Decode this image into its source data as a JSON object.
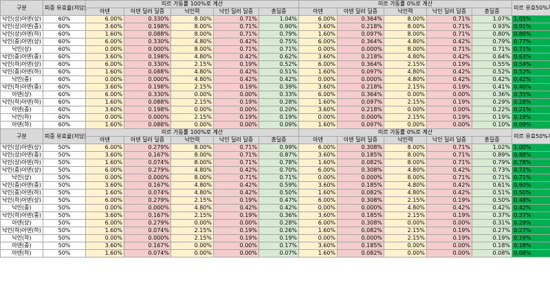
{
  "headers": {
    "gubun": "구분",
    "rate": "피증 유효율(저담)",
    "group100": "미르 가동률 100%로 계산",
    "group0": "미르 가동률 0%로 계산",
    "final": "미르 유효50%계산",
    "sub": [
      "아덴",
      "아덴 딜러 딜증",
      "낙인력",
      "낙인 딜러 딜증",
      "총딜증"
    ]
  },
  "sections": [
    {
      "rows": [
        {
          "name": "낙인(상)아덴(상)",
          "pct": "60%",
          "a": [
            "6.00%",
            "0.330%",
            "8.00%",
            "0.71%",
            "1.04%"
          ],
          "b": [
            "6.00%",
            "0.364%",
            "8.00%",
            "0.71%",
            "1.07%"
          ],
          "f": "1.05%"
        },
        {
          "name": "낙인(상)아덴(중)",
          "pct": "60%",
          "a": [
            "3.60%",
            "0.198%",
            "8.00%",
            "0.71%",
            "0.90%"
          ],
          "b": [
            "3.60%",
            "0.218%",
            "8.00%",
            "0.71%",
            "0.93%"
          ],
          "f": "0.91%"
        },
        {
          "name": "낙인(상)아덴(하)",
          "pct": "60%",
          "a": [
            "1.60%",
            "0.088%",
            "8.00%",
            "0.71%",
            "0.79%"
          ],
          "b": [
            "1.60%",
            "0.097%",
            "8.00%",
            "0.71%",
            "0.80%"
          ],
          "f": "0.80%"
        },
        {
          "name": "낙인(중)아덴(상)",
          "pct": "60%",
          "a": [
            "6.00%",
            "0.330%",
            "4.80%",
            "0.42%",
            "0.75%"
          ],
          "b": [
            "6.00%",
            "0.364%",
            "4.80%",
            "0.42%",
            "0.79%"
          ],
          "f": "0.77%"
        },
        {
          "name": "낙인(상)",
          "pct": "60%",
          "a": [
            "0.00%",
            "0.000%",
            "8.00%",
            "0.71%",
            "0.71%"
          ],
          "b": [
            "0.00%",
            "0.000%",
            "8.00%",
            "0.71%",
            "0.71%"
          ],
          "f": "0.71%"
        },
        {
          "name": "낙인(중)아덴(중)",
          "pct": "60%",
          "a": [
            "3.60%",
            "0.198%",
            "4.80%",
            "0.42%",
            "0.62%"
          ],
          "b": [
            "3.60%",
            "0.218%",
            "4.80%",
            "0.42%",
            "0.64%"
          ],
          "f": "0.63%"
        },
        {
          "name": "낙인(하)아덴(상)",
          "pct": "60%",
          "a": [
            "6.00%",
            "0.330%",
            "2.15%",
            "0.19%",
            "0.52%"
          ],
          "b": [
            "6.00%",
            "0.364%",
            "2.15%",
            "0.19%",
            "0.55%"
          ],
          "f": "0.54%"
        },
        {
          "name": "낙인(중)아덴(하)",
          "pct": "60%",
          "a": [
            "1.60%",
            "0.088%",
            "4.80%",
            "0.42%",
            "0.51%"
          ],
          "b": [
            "1.60%",
            "0.097%",
            "4.80%",
            "0.42%",
            "0.52%"
          ],
          "f": "0.52%"
        },
        {
          "name": "낙인(중)",
          "pct": "60%",
          "a": [
            "0.00%",
            "0.000%",
            "4.80%",
            "0.42%",
            "0.42%"
          ],
          "b": [
            "0.00%",
            "0.000%",
            "4.80%",
            "0.42%",
            "0.42%"
          ],
          "f": "0.42%"
        },
        {
          "name": "낙인(하)아덴(중)",
          "pct": "60%",
          "a": [
            "3.60%",
            "0.198%",
            "2.15%",
            "0.19%",
            "0.39%"
          ],
          "b": [
            "3.60%",
            "0.218%",
            "2.15%",
            "0.19%",
            "0.41%"
          ],
          "f": "0.40%"
        },
        {
          "name": "아덴(상)",
          "pct": "60%",
          "a": [
            "6.00%",
            "0.330%",
            "0.00%",
            "0.00%",
            "0.33%"
          ],
          "b": [
            "6.00%",
            "0.364%",
            "0.00%",
            "0.00%",
            "0.36%"
          ],
          "f": "0.35%"
        },
        {
          "name": "낙인(하)아덴(하)",
          "pct": "60%",
          "a": [
            "1.60%",
            "0.088%",
            "2.15%",
            "0.19%",
            "0.28%"
          ],
          "b": [
            "1.60%",
            "0.097%",
            "2.15%",
            "0.19%",
            "0.29%"
          ],
          "f": "0.28%"
        },
        {
          "name": "아덴(중)",
          "pct": "60%",
          "a": [
            "3.60%",
            "0.198%",
            "0.00%",
            "0.00%",
            "0.20%"
          ],
          "b": [
            "3.60%",
            "0.218%",
            "0.00%",
            "0.00%",
            "0.22%"
          ],
          "f": "0.21%"
        },
        {
          "name": "낙인(하)",
          "pct": "60%",
          "a": [
            "0.00%",
            "0.000%",
            "2.15%",
            "0.19%",
            "0.19%"
          ],
          "b": [
            "0.00%",
            "0.000%",
            "2.15%",
            "0.19%",
            "0.19%"
          ],
          "f": "0.19%"
        },
        {
          "name": "아덴(하)",
          "pct": "60%",
          "a": [
            "1.60%",
            "0.088%",
            "0.00%",
            "0.00%",
            "0.09%"
          ],
          "b": [
            "1.60%",
            "0.097%",
            "0.00%",
            "0.00%",
            "0.10%"
          ],
          "f": "0.09%"
        }
      ]
    },
    {
      "rows": [
        {
          "name": "낙인(상)아덴(상)",
          "pct": "50%",
          "a": [
            "6.00%",
            "0.279%",
            "8.00%",
            "0.71%",
            "0.99%"
          ],
          "b": [
            "6.00%",
            "0.308%",
            "8.00%",
            "0.71%",
            "1.02%"
          ],
          "f": "1.00%"
        },
        {
          "name": "낙인(상)아덴(중)",
          "pct": "50%",
          "a": [
            "3.60%",
            "0.167%",
            "8.00%",
            "0.71%",
            "0.87%"
          ],
          "b": [
            "3.60%",
            "0.185%",
            "8.00%",
            "0.71%",
            "0.89%"
          ],
          "f": "0.88%"
        },
        {
          "name": "낙인(상)아덴(하)",
          "pct": "50%",
          "a": [
            "1.60%",
            "0.074%",
            "8.00%",
            "0.71%",
            "0.78%"
          ],
          "b": [
            "1.60%",
            "0.082%",
            "8.00%",
            "0.71%",
            "0.79%"
          ],
          "f": "0.78%"
        },
        {
          "name": "낙인(중)아덴(상)",
          "pct": "50%",
          "a": [
            "6.00%",
            "0.279%",
            "4.80%",
            "0.42%",
            "0.70%"
          ],
          "b": [
            "6.00%",
            "0.308%",
            "4.80%",
            "0.42%",
            "0.73%"
          ],
          "f": "0.72%"
        },
        {
          "name": "낙인(상)",
          "pct": "50%",
          "a": [
            "0.00%",
            "0.000%",
            "8.00%",
            "0.71%",
            "0.71%"
          ],
          "b": [
            "0.00%",
            "0.000%",
            "8.00%",
            "0.71%",
            "0.71%"
          ],
          "f": "0.71%"
        },
        {
          "name": "낙인(중)아덴(중)",
          "pct": "50%",
          "a": [
            "3.60%",
            "0.167%",
            "4.80%",
            "0.42%",
            "0.59%"
          ],
          "b": [
            "3.60%",
            "0.185%",
            "4.80%",
            "0.42%",
            "0.61%"
          ],
          "f": "0.60%"
        },
        {
          "name": "낙인(중)아덴(하)",
          "pct": "50%",
          "a": [
            "1.60%",
            "0.074%",
            "4.80%",
            "0.42%",
            "0.50%"
          ],
          "b": [
            "1.60%",
            "0.082%",
            "4.80%",
            "0.42%",
            "0.51%"
          ],
          "f": "0.50%"
        },
        {
          "name": "낙인(하)아덴(상)",
          "pct": "50%",
          "a": [
            "6.00%",
            "0.279%",
            "2.15%",
            "0.19%",
            "0.47%"
          ],
          "b": [
            "6.00%",
            "0.308%",
            "2.15%",
            "0.19%",
            "0.50%"
          ],
          "f": "0.48%"
        },
        {
          "name": "낙인(중)",
          "pct": "50%",
          "a": [
            "0.00%",
            "0.000%",
            "4.80%",
            "0.42%",
            "0.42%"
          ],
          "b": [
            "0.00%",
            "0.000%",
            "4.80%",
            "0.42%",
            "0.42%"
          ],
          "f": "0.42%"
        },
        {
          "name": "낙인(하)아덴(중)",
          "pct": "50%",
          "a": [
            "3.60%",
            "0.167%",
            "2.15%",
            "0.19%",
            "0.36%"
          ],
          "b": [
            "3.60%",
            "0.185%",
            "2.15%",
            "0.19%",
            "0.37%"
          ],
          "f": "0.37%"
        },
        {
          "name": "아덴(상)",
          "pct": "50%",
          "a": [
            "6.00%",
            "0.279%",
            "0.00%",
            "0.00%",
            "0.28%"
          ],
          "b": [
            "6.00%",
            "0.308%",
            "0.00%",
            "0.00%",
            "0.31%"
          ],
          "f": "0.29%"
        },
        {
          "name": "낙인(하)아덴(하)",
          "pct": "50%",
          "a": [
            "1.60%",
            "0.074%",
            "2.15%",
            "0.19%",
            "0.26%"
          ],
          "b": [
            "1.60%",
            "0.082%",
            "2.15%",
            "0.19%",
            "0.27%"
          ],
          "f": "0.27%"
        },
        {
          "name": "낙인(하)",
          "pct": "50%",
          "a": [
            "0.00%",
            "0.000%",
            "2.15%",
            "0.19%",
            "0.19%"
          ],
          "b": [
            "0.00%",
            "0.000%",
            "2.15%",
            "0.19%",
            "0.19%"
          ],
          "f": "0.19%"
        },
        {
          "name": "아덴(중)",
          "pct": "50%",
          "a": [
            "3.60%",
            "0.167%",
            "0.00%",
            "0.00%",
            "0.17%"
          ],
          "b": [
            "3.60%",
            "0.185%",
            "0.00%",
            "0.00%",
            "0.18%"
          ],
          "f": "0.18%"
        },
        {
          "name": "아덴(하)",
          "pct": "50%",
          "a": [
            "1.60%",
            "0.074%",
            "0.00%",
            "0.00%",
            "0.07%"
          ],
          "b": [
            "1.60%",
            "0.082%",
            "0.00%",
            "0.00%",
            "0.08%"
          ],
          "f": "0.08%"
        }
      ]
    }
  ]
}
